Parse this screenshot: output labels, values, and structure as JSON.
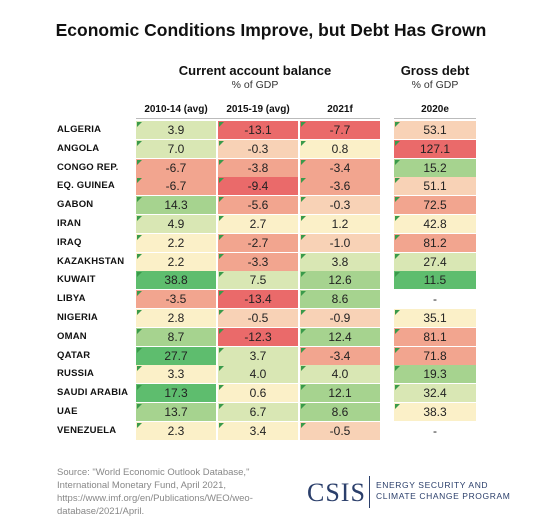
{
  "chart_data": {
    "type": "table",
    "title": "Economic Conditions Improve, but Debt Has Grown",
    "groups": [
      {
        "title": "Current account balance",
        "subtitle": "% of GDP"
      },
      {
        "title": "Gross debt",
        "subtitle": "% of GDP"
      }
    ],
    "columns": [
      "2010-14 (avg)",
      "2015-19 (avg)",
      "2021f",
      "2020e"
    ],
    "rows": [
      {
        "country": "ALGERIA",
        "values": [
          "3.9",
          "-13.1",
          "-7.7",
          "53.1"
        ]
      },
      {
        "country": "ANGOLA",
        "values": [
          "7.0",
          "-0.3",
          "0.8",
          "127.1"
        ]
      },
      {
        "country": "CONGO REP.",
        "values": [
          "-6.7",
          "-3.8",
          "-3.4",
          "15.2"
        ]
      },
      {
        "country": "EQ. GUINEA",
        "values": [
          "-6.7",
          "-9.4",
          "-3.6",
          "51.1"
        ]
      },
      {
        "country": "GABON",
        "values": [
          "14.3",
          "-5.6",
          "-0.3",
          "72.5"
        ]
      },
      {
        "country": "IRAN",
        "values": [
          "4.9",
          "2.7",
          "1.2",
          "42.8"
        ]
      },
      {
        "country": "IRAQ",
        "values": [
          "2.2",
          "-2.7",
          "-1.0",
          "81.2"
        ]
      },
      {
        "country": "KAZAKHSTAN",
        "values": [
          "2.2",
          "-3.3",
          "3.8",
          "27.4"
        ]
      },
      {
        "country": "KUWAIT",
        "values": [
          "38.8",
          "7.5",
          "12.6",
          "11.5"
        ]
      },
      {
        "country": "LIBYA",
        "values": [
          "-3.5",
          "-13.4",
          "8.6",
          "-"
        ]
      },
      {
        "country": "NIGERIA",
        "values": [
          "2.8",
          "-0.5",
          "-0.9",
          "35.1"
        ]
      },
      {
        "country": "OMAN",
        "values": [
          "8.7",
          "-12.3",
          "12.4",
          "81.1"
        ]
      },
      {
        "country": "QATAR",
        "values": [
          "27.7",
          "3.7",
          "-3.4",
          "71.8"
        ]
      },
      {
        "country": "RUSSIA",
        "values": [
          "3.3",
          "4.0",
          "4.0",
          "19.3"
        ]
      },
      {
        "country": "SAUDI ARABIA",
        "values": [
          "17.3",
          "0.6",
          "12.1",
          "32.4"
        ]
      },
      {
        "country": "UAE",
        "values": [
          "13.7",
          "6.7",
          "8.6",
          "38.3"
        ]
      },
      {
        "country": "VENEZUELA",
        "values": [
          "2.3",
          "3.4",
          "-0.5",
          "-"
        ]
      }
    ]
  },
  "source": "Source: \"World Economic Outlook Database,\" International Monetary Fund, April 2021, https://www.imf.org/en/Publications/WEO/weo-database/2021/April.",
  "logo": {
    "name": "CSIS",
    "line1": "ENERGY SECURITY AND",
    "line2": "CLIMATE CHANGE PROGRAM"
  },
  "colors": {
    "strong_neg": "#ea6a6a",
    "neg": "#f2a58f",
    "light_neg": "#f8d2b6",
    "neutral": "#fbf0c8",
    "light_pos": "#d9e7b4",
    "pos": "#a6d38f",
    "strong_pos": "#5ebd6e",
    "triangle": "#3a9a4a"
  }
}
